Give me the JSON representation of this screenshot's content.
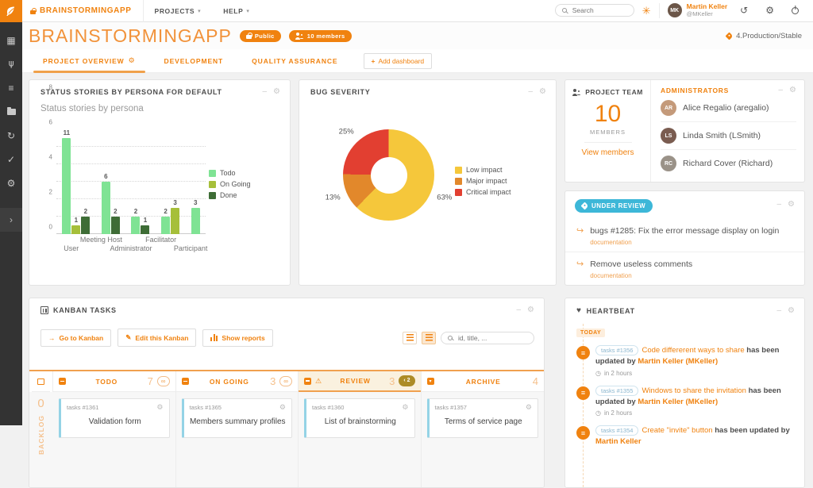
{
  "colors": {
    "primary": "#f0820f",
    "light_orange": "#f5c08c",
    "blue_badge": "#3db7d8",
    "sidebar_bg": "#333333",
    "wip_dark": "#ad8c26",
    "card_accent": "#94d3e6"
  },
  "topbar": {
    "app_name": "BRAINSTORMINGAPP",
    "menus": [
      {
        "label": "PROJECTS"
      },
      {
        "label": "HELP"
      }
    ],
    "search_placeholder": "Search",
    "user": {
      "name": "Martin Keller",
      "handle": "@MKeller",
      "initials": "MK"
    }
  },
  "sidebar": {
    "items": [
      "trackers-grid-icon",
      "git-icon",
      "agiledashboard-list-icon",
      "documents-folder-icon",
      "ci-refresh-icon",
      "testmanagement-check-icon",
      "admin-gears-icon"
    ]
  },
  "project": {
    "title": "BRAINSTORMINGAPP",
    "badges": {
      "visibility": "Public",
      "members": "10 members"
    },
    "release": "4.Production/Stable",
    "tabs": [
      {
        "label": "PROJECT OVERVIEW",
        "active": true
      },
      {
        "label": "DEVELOPMENT",
        "active": false
      },
      {
        "label": "QUALITY ASSURANCE",
        "active": false
      }
    ],
    "add_dashboard": "Add dashboard"
  },
  "persona_card": {
    "title": "STATUS STORIES BY PERSONA FOR DEFAULT"
  },
  "bug_card": {
    "title": "BUG SEVERITY"
  },
  "team_card": {
    "title": "PROJECT TEAM",
    "count": "10",
    "count_label": "MEMBERS",
    "view_link": "View members",
    "admins_title": "ADMINISTRATORS",
    "admins": [
      {
        "name": "Alice Regalio (aregalio)",
        "initials": "AR",
        "color": "#c49a7a"
      },
      {
        "name": "Linda Smith (LSmith)",
        "initials": "LS",
        "color": "#7a5c50"
      },
      {
        "name": "Richard Cover (Richard)",
        "initials": "RC",
        "color": "#9a9288"
      }
    ]
  },
  "review_card": {
    "badge": "UNDER REVIEW",
    "items": [
      {
        "title": "bugs #1285: Fix the error message display on login",
        "tag": "documentation"
      },
      {
        "title": "Remove useless comments",
        "tag": "documentation"
      }
    ]
  },
  "kanban_card": {
    "title": "KANBAN TASKS",
    "buttons": {
      "go": "Go to Kanban",
      "edit": "Edit this Kanban",
      "reports": "Show reports"
    },
    "search_placeholder": "id, title, ...",
    "backlog": {
      "label": "BACKLOG",
      "count": "0"
    },
    "columns": [
      {
        "name": "TODO",
        "count": "7",
        "wip": "∞",
        "wip_dark": false,
        "warning": false,
        "highlight": false,
        "cards": [
          {
            "id": "tasks #1361",
            "title": "Validation form"
          }
        ]
      },
      {
        "name": "ON GOING",
        "count": "3",
        "wip": "∞",
        "wip_dark": false,
        "warning": false,
        "highlight": false,
        "cards": [
          {
            "id": "tasks #1365",
            "title": "Members summary profiles"
          }
        ]
      },
      {
        "name": "REVIEW",
        "count": "3",
        "wip": "‹ 2",
        "wip_dark": true,
        "warning": true,
        "highlight": true,
        "cards": [
          {
            "id": "tasks #1360",
            "title": "List of brainstorming"
          }
        ]
      },
      {
        "name": "ARCHIVE",
        "count": "4",
        "wip": "",
        "wip_dark": false,
        "warning": false,
        "highlight": false,
        "cards": [
          {
            "id": "tasks #1357",
            "title": "Terms of service page"
          }
        ]
      }
    ]
  },
  "heartbeat_card": {
    "title": "HEARTBEAT",
    "today": "TODAY",
    "items": [
      {
        "badge": "tasks #1356",
        "link": "Code differerent ways to share",
        "action": "has been updated by",
        "author": "Martin Keller (MKeller)",
        "time": "in 2 hours"
      },
      {
        "badge": "tasks #1355",
        "link": "Windows to share the invitation",
        "action": "has been updated by",
        "author": "Martin Keller (MKeller)",
        "time": "in 2 hours"
      },
      {
        "badge": "tasks #1354",
        "link": "Create \"invite\" button",
        "action": "has been updated by",
        "author": "Martin Keller",
        "time": ""
      }
    ]
  },
  "chart_data": [
    {
      "type": "bar",
      "title": "Status stories by persona",
      "categories": [
        "User",
        "Meeting Host",
        "Administrator",
        "Facilitator",
        "Participant"
      ],
      "series": [
        {
          "name": "Todo",
          "color": "#7fe394",
          "values": [
            11,
            6,
            2,
            2,
            3
          ]
        },
        {
          "name": "On Going",
          "color": "#a6bf3a",
          "values": [
            1,
            0,
            0,
            3,
            0
          ]
        },
        {
          "name": "Done",
          "color": "#3e6d36",
          "values": [
            2,
            2,
            1,
            0,
            0
          ]
        }
      ],
      "ylim": [
        0,
        11
      ],
      "yticks": [
        0,
        2,
        4,
        6,
        8,
        10
      ],
      "grid": true,
      "legend_position": "right"
    },
    {
      "type": "pie",
      "donut": true,
      "title": "BUG SEVERITY",
      "labels": [
        "Low impact",
        "Major impact",
        "Critical impact"
      ],
      "values": [
        63,
        13,
        25
      ],
      "display_labels": [
        "63%",
        "13%",
        "25%"
      ],
      "colors": [
        "#f5c73b",
        "#e2882b",
        "#e23f31"
      ],
      "legend_position": "right"
    }
  ]
}
